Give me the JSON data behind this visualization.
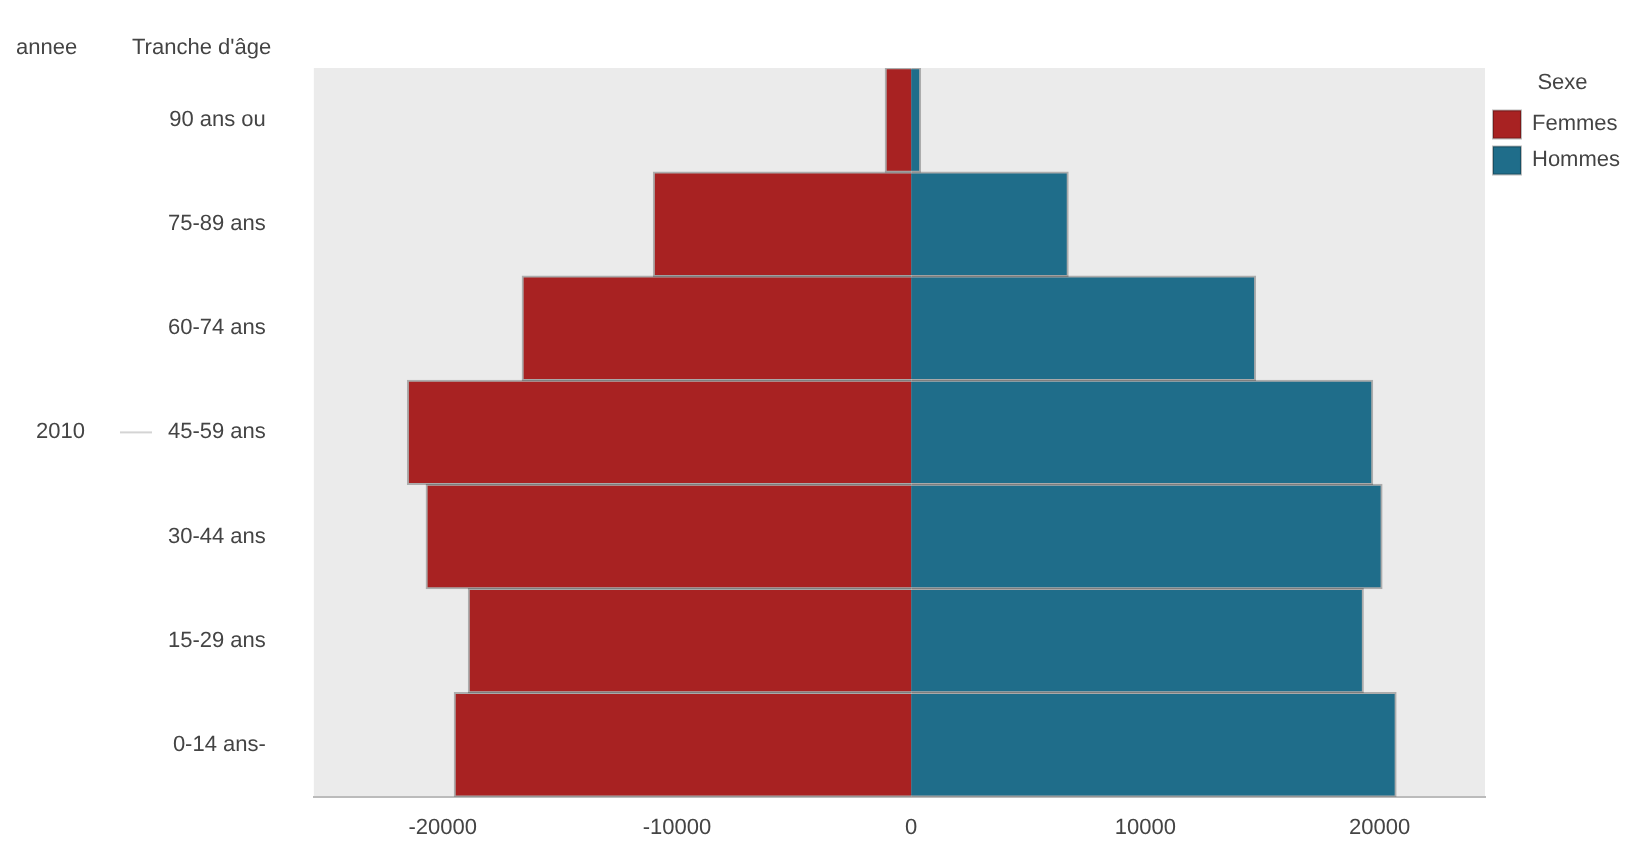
{
  "chart_data": {
    "type": "bar",
    "orientation": "horizontal",
    "stacked": true,
    "ylabel": "Tranche d'âge",
    "legend_title": "Sexe",
    "annotations": [
      "annee",
      "2010"
    ],
    "categories": [
      "90 ans ou",
      "75-89 ans",
      "60-74 ans",
      "45-59 ans",
      "30-44 ans",
      "15-29 ans",
      "0-14 ans-"
    ],
    "series": [
      {
        "name": "Femmes",
        "color": "#a82222",
        "values": [
          -1100,
          -11000,
          -16600,
          -21500,
          -20700,
          -18900,
          -19500
        ]
      },
      {
        "name": "Hommes",
        "color": "#1f6d8a",
        "values": [
          400,
          6700,
          14700,
          19700,
          20100,
          19300,
          20700
        ]
      }
    ],
    "xlim": [
      -25500,
      24500
    ],
    "xticks": [
      -20000,
      -10000,
      0,
      10000,
      20000
    ],
    "grid": false,
    "legend": "top right"
  }
}
